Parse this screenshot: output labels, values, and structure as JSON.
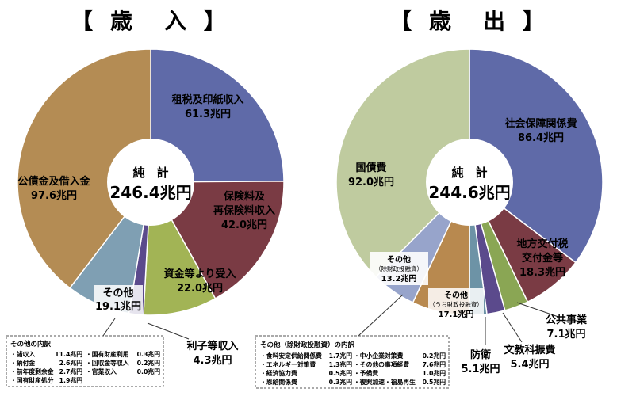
{
  "chart_data": [
    {
      "type": "pie",
      "title": "【 歳　入 】",
      "total_label": "純　計",
      "total_value": "246.4兆円",
      "slices": [
        {
          "name": "租税及印紙収入",
          "value": 61.3,
          "value_text": "61.3兆円",
          "color": "#5f6aa8"
        },
        {
          "name": "保険料及再保険料収入",
          "name_lines": [
            "保険料及",
            "再保険料収入"
          ],
          "value": 42.0,
          "value_text": "42.0兆円",
          "color": "#7a3b44"
        },
        {
          "name": "資金等より受入",
          "value": 22.0,
          "value_text": "22.0兆円",
          "color": "#a2b455"
        },
        {
          "name": "利子等収入",
          "value": 4.3,
          "value_text": "4.3兆円",
          "color": "#5b4a8c"
        },
        {
          "name": "その他",
          "value": 19.1,
          "value_text": "19.1兆円",
          "color": "#7f9fb3"
        },
        {
          "name": "公債金及借入金",
          "value": 97.6,
          "value_text": "97.6兆円",
          "color": "#b48c54"
        }
      ],
      "breakdown_title": "その他の内訳",
      "breakdown": [
        {
          "name": "・諸収入",
          "value": "11.4兆円"
        },
        {
          "name": "・国有財産利用",
          "value": "0.3兆円"
        },
        {
          "name": "・納付金",
          "value": "2.6兆円"
        },
        {
          "name": "・回収金等収入",
          "value": "0.2兆円"
        },
        {
          "name": "・前年度剰余金",
          "value": "2.7兆円"
        },
        {
          "name": "・官業収入",
          "value": "0.0兆円"
        },
        {
          "name": "・国有財産処分",
          "value": "1.9兆円"
        }
      ]
    },
    {
      "type": "pie",
      "title": "【 歳　出 】",
      "total_label": "純　計",
      "total_value": "244.6兆円",
      "slices": [
        {
          "name": "社会保障関係費",
          "value": 86.4,
          "value_text": "86.4兆円",
          "color": "#5f6aa8"
        },
        {
          "name": "地方交付税交付金等",
          "name_lines": [
            "地方交付税",
            "交付金等"
          ],
          "value": 18.3,
          "value_text": "18.3兆円",
          "color": "#7a3b44"
        },
        {
          "name": "公共事業",
          "value": 7.1,
          "value_text": "7.1兆円",
          "color": "#8aa654"
        },
        {
          "name": "文教科振費",
          "value": 5.4,
          "value_text": "5.4兆円",
          "color": "#5b4a8c"
        },
        {
          "name": "防衛",
          "value": 5.1,
          "value_text": "5.1兆円",
          "color": "#6d93a6"
        },
        {
          "name": "その他（うち財政投融資）",
          "name_lines": [
            "その他",
            "（うち財政投融資）"
          ],
          "value": 17.1,
          "value_text": "17.1兆円",
          "color": "#b8894f"
        },
        {
          "name": "その他（除財政投融資）",
          "name_lines": [
            "その他",
            "（除財政投融資）"
          ],
          "value": 13.2,
          "value_text": "13.2兆円",
          "color": "#97a4cb"
        },
        {
          "name": "国債費",
          "value": 92.0,
          "value_text": "92.0兆円",
          "color": "#bfcb9f"
        }
      ],
      "breakdown_title": "その他（除財政投融資）の内訳",
      "breakdown": [
        {
          "name": "・食料安定供給関係費",
          "value": "1.7兆円"
        },
        {
          "name": "・中小企業対策費",
          "value": "0.2兆円"
        },
        {
          "name": "・エネルギー対策費",
          "value": "1.3兆円"
        },
        {
          "name": "・その他の事項経費",
          "value": "7.6兆円"
        },
        {
          "name": "・経済協力費",
          "value": "0.5兆円"
        },
        {
          "name": "・予備費",
          "value": "1.0兆円"
        },
        {
          "name": "・恩給関係費",
          "value": "0.3兆円"
        },
        {
          "name": "・復興加速・福島再生",
          "value": "0.5兆円"
        }
      ]
    }
  ]
}
